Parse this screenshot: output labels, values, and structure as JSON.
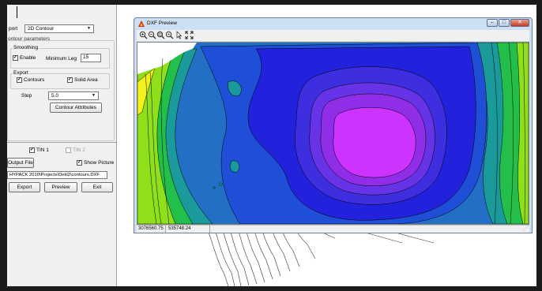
{
  "left_panel": {
    "export_label": "port",
    "export_value": "2D Contour",
    "contour_group_title": "ontour parameters",
    "smoothing": {
      "title": "Smoothing",
      "enable_label": "Enable",
      "enable_checked": true,
      "min_leg_label": "Minimum Leg",
      "min_leg_value": "15"
    },
    "export_group": {
      "title": "Export",
      "contours_label": "Contours",
      "contours_checked": true,
      "solid_area_label": "Solid Area",
      "solid_area_checked": true
    },
    "step_label": "Step",
    "step_value": "5.0",
    "contour_attributes_label": "Contour Attributes",
    "tin1_label": "TIN 1",
    "tin1_checked": true,
    "tin2_label": "TIN 2",
    "tin2_checked": false,
    "output_file_label": "Output File",
    "show_picture_label": "Show Picture",
    "show_picture_checked": true,
    "output_path": "HYPACK 2010\\Projects\\Dekl2\\contours.DXF",
    "export_button": "Export",
    "preview_button": "Preview",
    "exit_button": "Exit"
  },
  "preview_window": {
    "title": "DXF Preview",
    "icons": [
      "zoom-in-icon",
      "zoom-out-icon",
      "zoom-extents-icon",
      "pan-icon",
      "pointer-icon",
      "fit-icon"
    ],
    "status_x": "3076560.75",
    "status_y": "535748.24",
    "colors": {
      "magenta": "#cc33ff",
      "violet": "#8f2ee6",
      "purple": "#6633e6",
      "indigo": "#3d2ee0",
      "blue": "#2222dd",
      "mid_blue": "#1f4fd6",
      "steel_blue": "#236fc6",
      "teal": "#1a9a9a",
      "green": "#22c04a",
      "lime": "#8fe01a",
      "yellow": "#f2f21a"
    }
  }
}
